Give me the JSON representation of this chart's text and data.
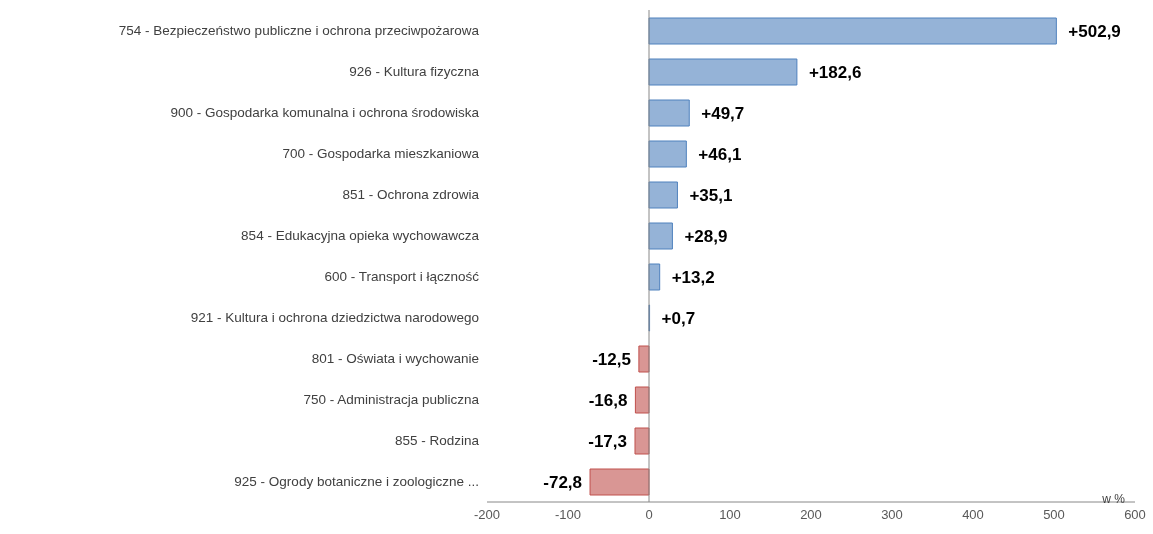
{
  "chart_data": {
    "type": "bar",
    "orientation": "horizontal",
    "categories": [
      "754 - Bezpieczeństwo publiczne i ochrona przeciwpożarowa",
      "926 - Kultura fizyczna",
      "900 - Gospodarka komunalna i ochrona środowiska",
      "700 - Gospodarka mieszkaniowa",
      "851 - Ochrona zdrowia",
      "854 - Edukacyjna opieka wychowawcza",
      "600 - Transport i łączność",
      "921 - Kultura i ochrona dziedzictwa narodowego",
      "801 - Oświata i wychowanie",
      "750 - Administracja publiczna",
      "855 - Rodzina",
      "925 - Ogrody botaniczne i zoologiczne ..."
    ],
    "values": [
      502.9,
      182.6,
      49.7,
      46.1,
      35.1,
      28.9,
      13.2,
      0.7,
      -12.5,
      -16.8,
      -17.3,
      -72.8
    ],
    "value_labels": [
      "+502,9",
      "+182,6",
      "+49,7",
      "+46,1",
      "+35,1",
      "+28,9",
      "+13,2",
      "+0,7",
      "-12,5",
      "-16,8",
      "-17,3",
      "-72,8"
    ],
    "colors": [
      "#95b3d7",
      "#95b3d7",
      "#95b3d7",
      "#95b3d7",
      "#95b3d7",
      "#95b3d7",
      "#95b3d7",
      "#95b3d7",
      "#d99694",
      "#d99694",
      "#d99694",
      "#d99694"
    ],
    "xlim": [
      -200,
      600
    ],
    "xticks": [
      -200,
      -100,
      0,
      100,
      200,
      300,
      400,
      500,
      600
    ],
    "annotations": [
      "w %"
    ]
  }
}
